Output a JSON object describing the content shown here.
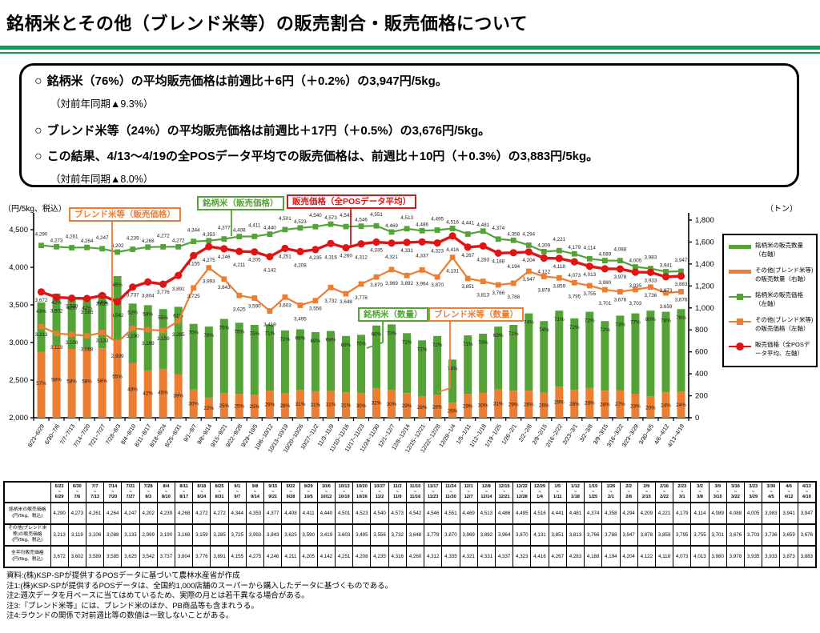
{
  "header": {
    "title": "銘柄米とその他（ブレンド米等）の販売割合・販売価格について"
  },
  "summary": {
    "bullet": "○",
    "items": [
      {
        "type": "main",
        "text": "銘柄米（76%）の平均販売価格は前週比＋6円（＋0.2%）の3,947円/5kg。"
      },
      {
        "type": "sub",
        "text": "（対前年同期▲9.3%）"
      },
      {
        "type": "main",
        "text": "ブレンド米等（24%）の平均販売価格は前週比＋17円（＋0.5%）の3,676円/5kg。"
      },
      {
        "type": "main",
        "text": "この結果、4/13～4/19の全POSデータ平均での販売価格は、前週比＋10円（＋0.3%）の3,883円/5kg。"
      },
      {
        "type": "sub",
        "text": "（対前年同期▲8.0%）"
      }
    ]
  },
  "colors": {
    "green": "#54A336",
    "orange": "#ED7D31",
    "red": "#E01414",
    "title_rule": "#00A551",
    "label": "#1a1a1a"
  },
  "chart_data": {
    "type": "combo-stacked-bar-line",
    "x": [
      "6/23～6/29",
      "6/30～7/6",
      "7/7～7/13",
      "7/14～7/20",
      "7/21～7/27",
      "7/28～8/3",
      "8/4～8/10",
      "8/11～8/17",
      "8/18～8/24",
      "8/25～8/31",
      "9/1～9/7",
      "9/8～9/14",
      "9/15～9/21",
      "9/22～9/28",
      "9/29～10/5",
      "10/6～10/12",
      "10/13～10/19",
      "10/20～10/26",
      "10/27～11/2",
      "11/3～11/9",
      "11/10～11/16",
      "11/17～11/23",
      "11/24～11/30",
      "12/1～12/7",
      "12/8～12/14",
      "12/15～12/21",
      "12/22～12/28",
      "12/29～1/4",
      "1/5～1/11",
      "1/12～1/18",
      "1/19～1/25",
      "1/26～2/1",
      "2/2～2/8",
      "2/9～2/15",
      "2/16～2/22",
      "2/23～3/1",
      "3/2～3/8",
      "3/9～3/15",
      "3/16～3/22",
      "3/23～3/29",
      "3/30～4/5",
      "4/6～4/12",
      "4/13～4/19"
    ],
    "left_axis": {
      "title": "（円/5kg、税込）",
      "min": 2000,
      "max": 4500,
      "step": 500
    },
    "right_axis": {
      "title": "（トン）",
      "min": 0,
      "max": 1800,
      "step": 200
    },
    "bars": {
      "total_volume_tons_est": [
        1050,
        1130,
        1080,
        1080,
        1130,
        1290,
        1040,
        1025,
        990,
        1010,
        855,
        830,
        900,
        865,
        845,
        850,
        795,
        805,
        780,
        790,
        745,
        755,
        840,
        850,
        770,
        705,
        745,
        530,
        750,
        765,
        830,
        845,
        950,
        880,
        975,
        905,
        965,
        880,
        930,
        950,
        975,
        965,
        990
      ],
      "stacks": [
        {
          "name": "その他(ブレンド米等)の販売数量",
          "color": "#ED7D31",
          "share_pct": [
            57,
            58,
            58,
            58,
            56,
            55,
            48,
            42,
            45,
            39,
            30,
            22,
            25,
            25,
            25,
            29,
            28,
            31,
            31,
            31,
            31,
            30,
            32,
            30,
            29,
            28,
            28,
            26,
            29,
            30,
            31,
            29,
            26,
            26,
            29,
            28,
            28,
            28,
            27,
            23,
            20,
            24,
            24
          ]
        },
        {
          "name": "銘柄米の販売数量",
          "color": "#54A336",
          "share_pct": [
            43,
            42,
            42,
            42,
            44,
            45,
            52,
            58,
            55,
            61,
            70,
            78,
            75,
            75,
            75,
            71,
            72,
            69,
            69,
            69,
            69,
            70,
            68,
            70,
            71,
            72,
            72,
            74,
            71,
            70,
            69,
            71,
            74,
            74,
            71,
            72,
            72,
            72,
            73,
            77,
            80,
            76,
            76
          ]
        }
      ]
    },
    "lines": [
      {
        "name": "銘柄米の販売価格",
        "color": "#54A336",
        "marker": "square",
        "label_side": "above",
        "values": [
          4290,
          4273,
          4261,
          4264,
          4247,
          4202,
          4239,
          4268,
          4272,
          4272,
          4344,
          4353,
          4377,
          4408,
          4411,
          4440,
          4501,
          4523,
          4540,
          4573,
          4542,
          4546,
          4551,
          4469,
          4513,
          4486,
          4495,
          4516,
          4441,
          4481,
          4374,
          4358,
          4294,
          4209,
          4221,
          4179,
          4114,
          4089,
          4088,
          4005,
          3983,
          3941,
          3947
        ]
      },
      {
        "name": "その他(ブレンド米等)の販売価格",
        "color": "#ED7D31",
        "marker": "square",
        "label_side": "below",
        "values": [
          3213,
          3119,
          3106,
          3088,
          3133,
          2999,
          3190,
          3169,
          3159,
          3285,
          3725,
          3993,
          3843,
          3625,
          3590,
          3419,
          3603,
          3495,
          3556,
          3732,
          3648,
          3778,
          3870,
          3969,
          3892,
          3964,
          3870,
          4131,
          3851,
          3813,
          3766,
          3788,
          3947,
          3878,
          3859,
          3795,
          3755,
          3701,
          3676,
          3703,
          3736,
          3659,
          3676
        ]
      },
      {
        "name": "販売価格（全POSデータ平均）",
        "color": "#E01414",
        "marker": "circle",
        "label_side": "below",
        "values": [
          3672,
          3602,
          3589,
          3585,
          3625,
          3542,
          3737,
          3804,
          3776,
          3891,
          4155,
          4275,
          4246,
          4211,
          4205,
          4142,
          4251,
          4208,
          4235,
          4316,
          4260,
          4312,
          4335,
          4321,
          4331,
          4337,
          4323,
          4416,
          4267,
          4283,
          4188,
          4194,
          4204,
          4122,
          4118,
          4073,
          4013,
          3980,
          3978,
          3935,
          3933,
          3873,
          3883
        ]
      }
    ],
    "annotations": [
      {
        "text": "ブレンド米等（販売価格）",
        "color": "#ED7D31"
      },
      {
        "text": "銘柄米（販売価格）",
        "color": "#54A336"
      },
      {
        "text": "販売価格（全POSデータ平均）",
        "color": "#E01414"
      },
      {
        "text": "銘柄米（数量）",
        "color": "#54A336"
      },
      {
        "text": "ブレンド米等（数量）",
        "color": "#ED7D31"
      }
    ]
  },
  "legend": {
    "entries": [
      {
        "swatch": "bar",
        "color": "#54A336",
        "label": "銘柄米の販売数量（右軸）"
      },
      {
        "swatch": "bar",
        "color": "#ED7D31",
        "label": "その他(ブレンド米等)の販売数量（右軸）"
      },
      {
        "swatch": "line-square",
        "color": "#54A336",
        "label": "銘柄米の販売価格（左軸）"
      },
      {
        "swatch": "line-square",
        "color": "#ED7D31",
        "label": "その他(ブレンド米等)の販売価格（左軸）"
      },
      {
        "swatch": "line-circle",
        "color": "#E01414",
        "label": "販売価格（全POSデータ平均、左軸）"
      }
    ]
  },
  "table": {
    "rows": [
      {
        "label": "銘柄米の販売価格\n(円/5kg、税込)",
        "series": 0
      },
      {
        "label": "その他(ブレンド米\n等)の販売価格\n(円/5kg、税込)",
        "series": 1
      },
      {
        "label": "全平均販売価格\n(円/5kg、税込)",
        "series": 2
      }
    ]
  },
  "footnotes": [
    "資料:(株)KSP-SPが提供するPOSデータに基づいて農林水産省が作成",
    "注1:(株)KSP-SPが提供するPOSデータは、全国約1,000店舗のスーパーから購入したデータに基づくものである。",
    "注2:週次データを月ベースに当てはめているため、実際の月とは若干異なる場合がある。",
    "注3:『ブレンド米等』には、ブレンド米のほか、PB商品等も含まれうる。",
    "注4:ラウンドの関係で対前週比等の数値は一致しないことがある。"
  ]
}
